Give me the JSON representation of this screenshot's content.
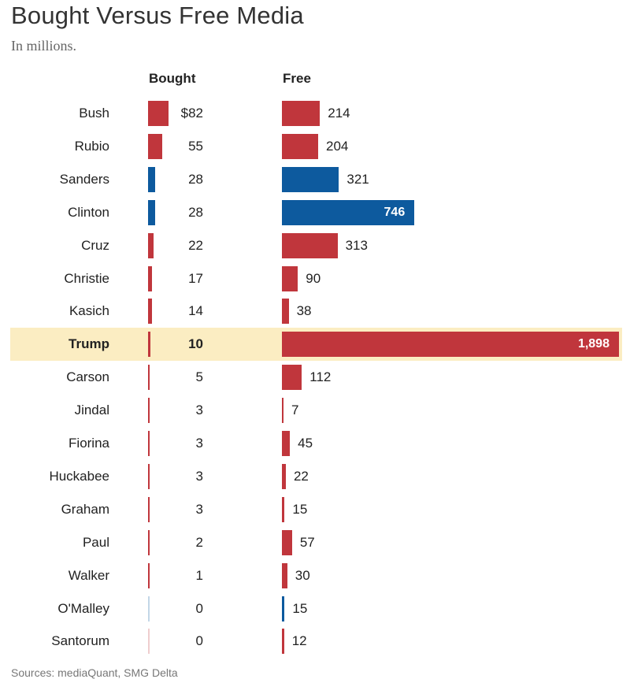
{
  "chart_data": {
    "type": "bar",
    "title": "Bought Versus Free Media",
    "subtitle": "In millions.",
    "columns": [
      "Bought",
      "Free"
    ],
    "categories": [
      "Bush",
      "Rubio",
      "Sanders",
      "Clinton",
      "Cruz",
      "Christie",
      "Kasich",
      "Trump",
      "Carson",
      "Jindal",
      "Fiorina",
      "Huckabee",
      "Graham",
      "Paul",
      "Walker",
      "O'Malley",
      "Santorum"
    ],
    "series": [
      {
        "name": "Bought",
        "values": [
          82,
          55,
          28,
          28,
          22,
          17,
          14,
          10,
          5,
          3,
          3,
          3,
          3,
          2,
          1,
          0,
          0
        ],
        "labels": [
          "$82",
          "55",
          "28",
          "28",
          "22",
          "17",
          "14",
          "10",
          "5",
          "3",
          "3",
          "3",
          "3",
          "2",
          "1",
          "0",
          "0"
        ]
      },
      {
        "name": "Free",
        "values": [
          214,
          204,
          321,
          746,
          313,
          90,
          38,
          1898,
          112,
          7,
          45,
          22,
          15,
          57,
          30,
          15,
          12
        ],
        "labels": [
          "214",
          "204",
          "321",
          "746",
          "313",
          "90",
          "38",
          "1,898",
          "112",
          "7",
          "45",
          "22",
          "15",
          "57",
          "30",
          "15",
          "12"
        ]
      }
    ],
    "party": [
      "R",
      "R",
      "D",
      "D",
      "R",
      "R",
      "R",
      "R",
      "R",
      "R",
      "R",
      "R",
      "R",
      "R",
      "R",
      "D",
      "R"
    ],
    "highlight": "Trump",
    "colors": {
      "R": "#c0363c",
      "D": "#0d5a9e",
      "highlight_bg": "#fbedc2"
    },
    "source": "Sources: mediaQuant, SMG Delta"
  }
}
